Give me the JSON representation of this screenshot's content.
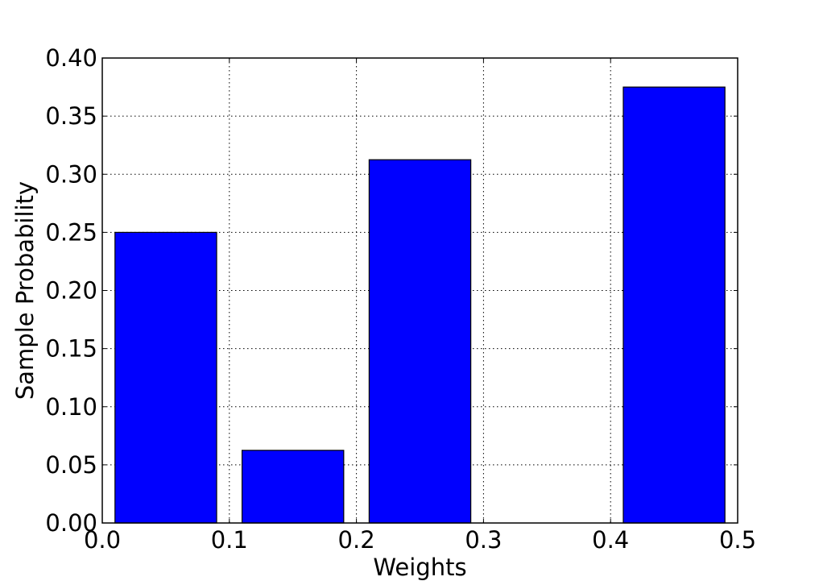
{
  "chart_data": {
    "type": "bar",
    "title": "",
    "xlabel": "Weights",
    "ylabel": "Sample Probability",
    "xlim": [
      0.0,
      0.5
    ],
    "ylim": [
      0.0,
      0.4
    ],
    "grid": true,
    "bar_color": "#0000ff",
    "bars": [
      {
        "x_start": 0.01,
        "x_end": 0.09,
        "value": 0.25
      },
      {
        "x_start": 0.11,
        "x_end": 0.19,
        "value": 0.0625
      },
      {
        "x_start": 0.21,
        "x_end": 0.29,
        "value": 0.3125
      },
      {
        "x_start": 0.31,
        "x_end": 0.39,
        "value": 0.0
      },
      {
        "x_start": 0.41,
        "x_end": 0.49,
        "value": 0.375
      }
    ],
    "xticks": [
      {
        "value": 0.0,
        "label": "0.0"
      },
      {
        "value": 0.1,
        "label": "0.1"
      },
      {
        "value": 0.2,
        "label": "0.2"
      },
      {
        "value": 0.3,
        "label": "0.3"
      },
      {
        "value": 0.4,
        "label": "0.4"
      },
      {
        "value": 0.5,
        "label": "0.5"
      }
    ],
    "yticks": [
      {
        "value": 0.0,
        "label": "0.00"
      },
      {
        "value": 0.05,
        "label": "0.05"
      },
      {
        "value": 0.1,
        "label": "0.10"
      },
      {
        "value": 0.15,
        "label": "0.15"
      },
      {
        "value": 0.2,
        "label": "0.20"
      },
      {
        "value": 0.25,
        "label": "0.25"
      },
      {
        "value": 0.3,
        "label": "0.30"
      },
      {
        "value": 0.35,
        "label": "0.35"
      },
      {
        "value": 0.4,
        "label": "0.40"
      }
    ]
  }
}
